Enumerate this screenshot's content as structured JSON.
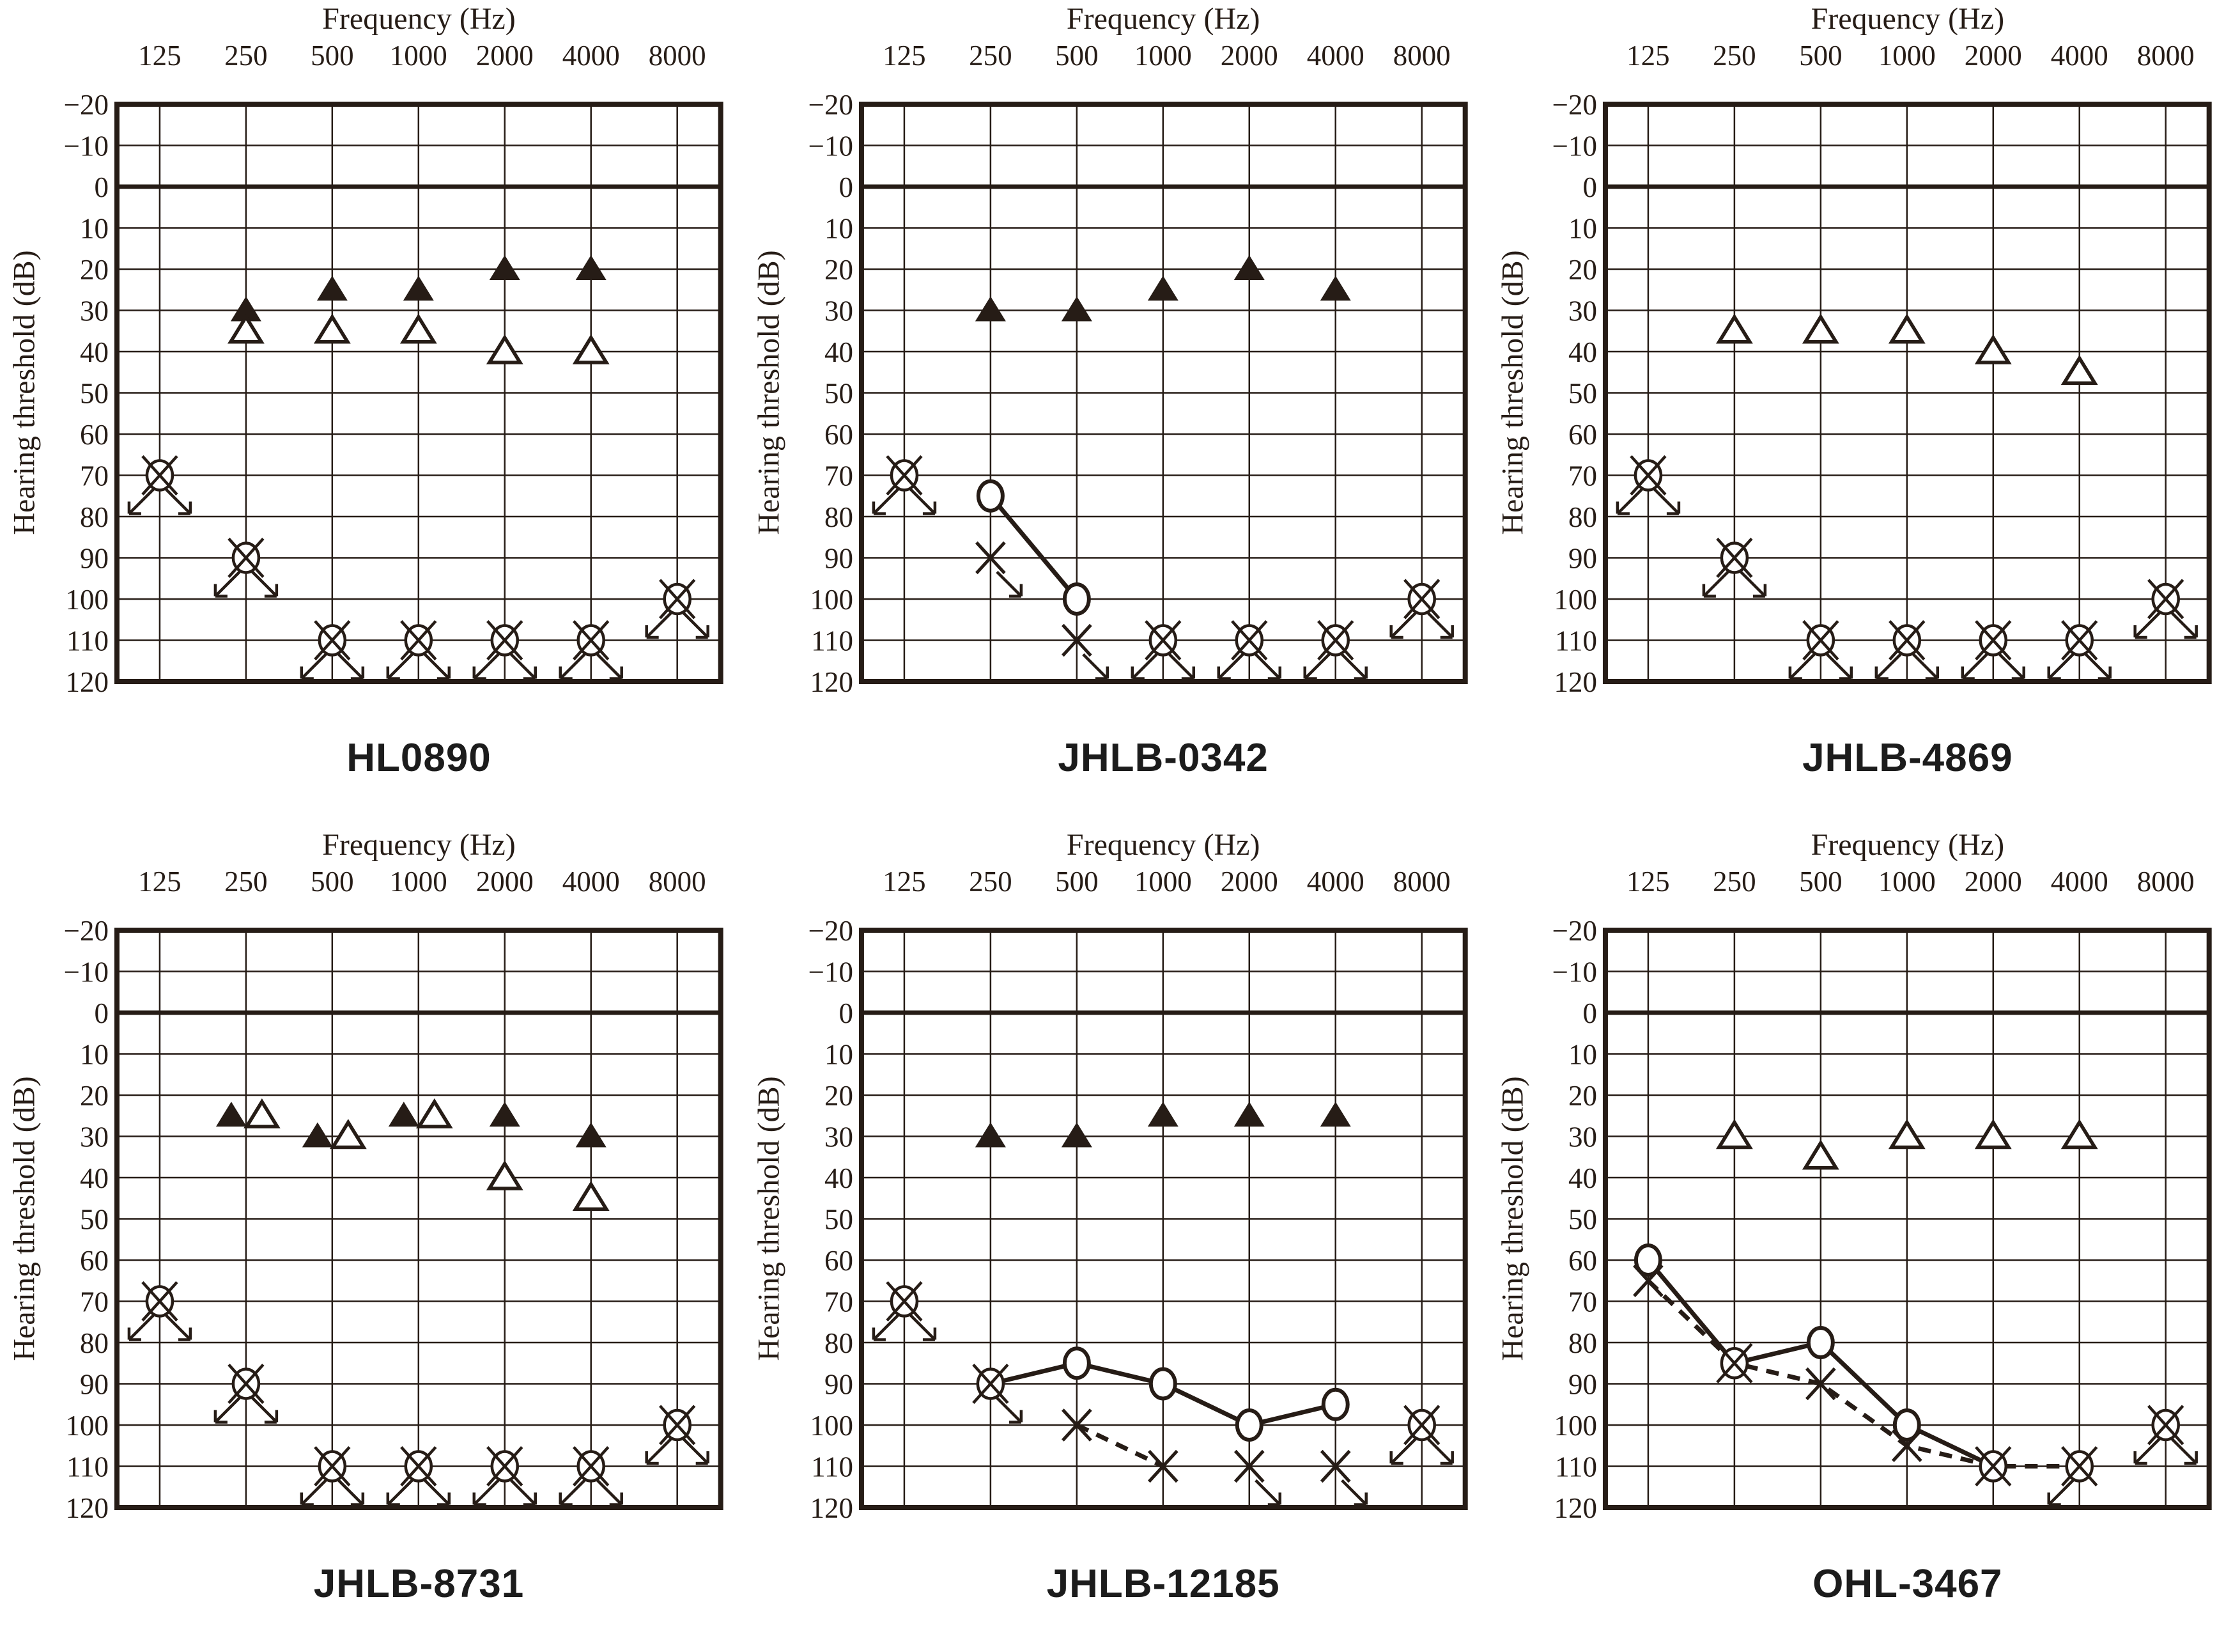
{
  "colors": {
    "ink": "#261c16",
    "background": "#ffffff"
  },
  "chart_data": {
    "type": "scatter",
    "description": "Six pure-tone audiograms arranged in a 2x3 grid",
    "layout": {
      "rows": 2,
      "cols": 3,
      "grid": true,
      "legend": "none"
    },
    "axes": {
      "x_title": "Frequency (Hz)",
      "y_title": "Hearing threshold (dB)",
      "x_ticks": [
        125,
        250,
        500,
        1000,
        2000,
        4000,
        8000
      ],
      "y_ticks": [
        -20,
        -10,
        0,
        10,
        20,
        30,
        40,
        50,
        60,
        70,
        80,
        90,
        100,
        110,
        120
      ],
      "y_min": -20,
      "y_max": 120,
      "y_step": 10,
      "zero_line_emphasized": true
    },
    "symbol_key": {
      "tri-filled": "filled upward triangle",
      "tri-open": "open upward triangle",
      "circle": "open circle (right ear, air conduction)",
      "x": "x mark (left ear, air conduction)",
      "circle-x": "overlapped circle and x (no-response / combined symbol)",
      "arrows": "dl = down-left no-response arrow, dr = down-right no-response arrow"
    },
    "charts": [
      {
        "name": "HL0890",
        "markers": [
          {
            "sym": "tri-filled",
            "f": 250,
            "db": 30
          },
          {
            "sym": "tri-filled",
            "f": 500,
            "db": 25
          },
          {
            "sym": "tri-filled",
            "f": 1000,
            "db": 25
          },
          {
            "sym": "tri-filled",
            "f": 2000,
            "db": 20
          },
          {
            "sym": "tri-filled",
            "f": 4000,
            "db": 20
          },
          {
            "sym": "tri-open",
            "f": 250,
            "db": 35
          },
          {
            "sym": "tri-open",
            "f": 500,
            "db": 35
          },
          {
            "sym": "tri-open",
            "f": 1000,
            "db": 35
          },
          {
            "sym": "tri-open",
            "f": 2000,
            "db": 40
          },
          {
            "sym": "tri-open",
            "f": 4000,
            "db": 40
          },
          {
            "sym": "circle-x",
            "f": 125,
            "db": 70,
            "arrows": [
              "dl",
              "dr"
            ]
          },
          {
            "sym": "circle-x",
            "f": 250,
            "db": 90,
            "arrows": [
              "dl",
              "dr"
            ]
          },
          {
            "sym": "circle-x",
            "f": 500,
            "db": 110,
            "arrows": [
              "dl",
              "dr"
            ]
          },
          {
            "sym": "circle-x",
            "f": 1000,
            "db": 110,
            "arrows": [
              "dl",
              "dr"
            ]
          },
          {
            "sym": "circle-x",
            "f": 2000,
            "db": 110,
            "arrows": [
              "dl",
              "dr"
            ]
          },
          {
            "sym": "circle-x",
            "f": 4000,
            "db": 110,
            "arrows": [
              "dl",
              "dr"
            ]
          },
          {
            "sym": "circle-x",
            "f": 8000,
            "db": 100,
            "arrows": [
              "dl",
              "dr"
            ]
          }
        ],
        "lines": []
      },
      {
        "name": "JHLB-0342",
        "markers": [
          {
            "sym": "tri-filled",
            "f": 250,
            "db": 30
          },
          {
            "sym": "tri-filled",
            "f": 500,
            "db": 30
          },
          {
            "sym": "tri-filled",
            "f": 1000,
            "db": 25
          },
          {
            "sym": "tri-filled",
            "f": 2000,
            "db": 20
          },
          {
            "sym": "tri-filled",
            "f": 4000,
            "db": 25
          },
          {
            "sym": "circle",
            "f": 250,
            "db": 75
          },
          {
            "sym": "circle",
            "f": 500,
            "db": 100
          },
          {
            "sym": "x",
            "f": 250,
            "db": 90,
            "arrows": [
              "dr"
            ]
          },
          {
            "sym": "x",
            "f": 500,
            "db": 110,
            "arrows": [
              "dr"
            ]
          },
          {
            "sym": "circle-x",
            "f": 125,
            "db": 70,
            "arrows": [
              "dl",
              "dr"
            ]
          },
          {
            "sym": "circle-x",
            "f": 1000,
            "db": 110,
            "arrows": [
              "dl",
              "dr"
            ]
          },
          {
            "sym": "circle-x",
            "f": 2000,
            "db": 110,
            "arrows": [
              "dl",
              "dr"
            ]
          },
          {
            "sym": "circle-x",
            "f": 4000,
            "db": 110,
            "arrows": [
              "dl",
              "dr"
            ]
          },
          {
            "sym": "circle-x",
            "f": 8000,
            "db": 100,
            "arrows": [
              "dl",
              "dr"
            ]
          }
        ],
        "lines": [
          {
            "style": "solid",
            "points": [
              [
                250,
                75
              ],
              [
                500,
                100
              ]
            ]
          }
        ]
      },
      {
        "name": "JHLB-4869",
        "markers": [
          {
            "sym": "tri-open",
            "f": 250,
            "db": 35
          },
          {
            "sym": "tri-open",
            "f": 500,
            "db": 35
          },
          {
            "sym": "tri-open",
            "f": 1000,
            "db": 35
          },
          {
            "sym": "tri-open",
            "f": 2000,
            "db": 40
          },
          {
            "sym": "tri-open",
            "f": 4000,
            "db": 45
          },
          {
            "sym": "circle-x",
            "f": 125,
            "db": 70,
            "arrows": [
              "dl",
              "dr"
            ]
          },
          {
            "sym": "circle-x",
            "f": 250,
            "db": 90,
            "arrows": [
              "dl",
              "dr"
            ]
          },
          {
            "sym": "circle-x",
            "f": 500,
            "db": 110,
            "arrows": [
              "dl",
              "dr"
            ]
          },
          {
            "sym": "circle-x",
            "f": 1000,
            "db": 110,
            "arrows": [
              "dl",
              "dr"
            ]
          },
          {
            "sym": "circle-x",
            "f": 2000,
            "db": 110,
            "arrows": [
              "dl",
              "dr"
            ]
          },
          {
            "sym": "circle-x",
            "f": 4000,
            "db": 110,
            "arrows": [
              "dl",
              "dr"
            ]
          },
          {
            "sym": "circle-x",
            "f": 8000,
            "db": 100,
            "arrows": [
              "dl",
              "dr"
            ]
          }
        ],
        "lines": []
      },
      {
        "name": "JHLB-8731",
        "markers": [
          {
            "sym": "tri-filled",
            "f": 250,
            "db": 25,
            "dx": -23
          },
          {
            "sym": "tri-filled",
            "f": 500,
            "db": 30,
            "dx": -23
          },
          {
            "sym": "tri-filled",
            "f": 1000,
            "db": 25,
            "dx": -23
          },
          {
            "sym": "tri-filled",
            "f": 2000,
            "db": 25
          },
          {
            "sym": "tri-filled",
            "f": 4000,
            "db": 30
          },
          {
            "sym": "tri-open",
            "f": 250,
            "db": 25,
            "dx": 25
          },
          {
            "sym": "tri-open",
            "f": 500,
            "db": 30,
            "dx": 25
          },
          {
            "sym": "tri-open",
            "f": 1000,
            "db": 25,
            "dx": 25
          },
          {
            "sym": "tri-open",
            "f": 2000,
            "db": 40
          },
          {
            "sym": "tri-open",
            "f": 4000,
            "db": 45
          },
          {
            "sym": "circle-x",
            "f": 125,
            "db": 70,
            "arrows": [
              "dl",
              "dr"
            ]
          },
          {
            "sym": "circle-x",
            "f": 250,
            "db": 90,
            "arrows": [
              "dl",
              "dr"
            ]
          },
          {
            "sym": "circle-x",
            "f": 500,
            "db": 110,
            "arrows": [
              "dl",
              "dr"
            ]
          },
          {
            "sym": "circle-x",
            "f": 1000,
            "db": 110,
            "arrows": [
              "dl",
              "dr"
            ]
          },
          {
            "sym": "circle-x",
            "f": 2000,
            "db": 110,
            "arrows": [
              "dl",
              "dr"
            ]
          },
          {
            "sym": "circle-x",
            "f": 4000,
            "db": 110,
            "arrows": [
              "dl",
              "dr"
            ]
          },
          {
            "sym": "circle-x",
            "f": 8000,
            "db": 100,
            "arrows": [
              "dl",
              "dr"
            ]
          }
        ],
        "lines": []
      },
      {
        "name": "JHLB-12185",
        "markers": [
          {
            "sym": "tri-filled",
            "f": 250,
            "db": 30
          },
          {
            "sym": "tri-filled",
            "f": 500,
            "db": 30
          },
          {
            "sym": "tri-filled",
            "f": 1000,
            "db": 25
          },
          {
            "sym": "tri-filled",
            "f": 2000,
            "db": 25
          },
          {
            "sym": "tri-filled",
            "f": 4000,
            "db": 25
          },
          {
            "sym": "circle-x",
            "f": 250,
            "db": 90,
            "arrows": [
              "dr"
            ]
          },
          {
            "sym": "circle",
            "f": 500,
            "db": 85
          },
          {
            "sym": "circle",
            "f": 1000,
            "db": 90
          },
          {
            "sym": "circle",
            "f": 2000,
            "db": 100
          },
          {
            "sym": "circle",
            "f": 4000,
            "db": 95
          },
          {
            "sym": "x",
            "f": 500,
            "db": 100
          },
          {
            "sym": "x",
            "f": 1000,
            "db": 110
          },
          {
            "sym": "x",
            "f": 2000,
            "db": 110,
            "arrows": [
              "dr"
            ]
          },
          {
            "sym": "x",
            "f": 4000,
            "db": 110,
            "arrows": [
              "dr"
            ]
          },
          {
            "sym": "circle-x",
            "f": 125,
            "db": 70,
            "arrows": [
              "dl",
              "dr"
            ]
          },
          {
            "sym": "circle-x",
            "f": 8000,
            "db": 100,
            "arrows": [
              "dl",
              "dr"
            ]
          }
        ],
        "lines": [
          {
            "style": "solid",
            "points": [
              [
                250,
                90
              ],
              [
                500,
                85
              ],
              [
                1000,
                90
              ],
              [
                2000,
                100
              ],
              [
                4000,
                95
              ]
            ]
          },
          {
            "style": "dashed",
            "points": [
              [
                500,
                100
              ],
              [
                1000,
                110
              ]
            ]
          }
        ]
      },
      {
        "name": "OHL-3467",
        "markers": [
          {
            "sym": "tri-open",
            "f": 250,
            "db": 30
          },
          {
            "sym": "tri-open",
            "f": 500,
            "db": 35
          },
          {
            "sym": "tri-open",
            "f": 1000,
            "db": 30
          },
          {
            "sym": "tri-open",
            "f": 2000,
            "db": 30
          },
          {
            "sym": "tri-open",
            "f": 4000,
            "db": 30
          },
          {
            "sym": "circle",
            "f": 125,
            "db": 60
          },
          {
            "sym": "circle",
            "f": 500,
            "db": 80
          },
          {
            "sym": "circle",
            "f": 1000,
            "db": 100
          },
          {
            "sym": "x",
            "f": 125,
            "db": 65
          },
          {
            "sym": "x",
            "f": 500,
            "db": 90
          },
          {
            "sym": "x",
            "f": 1000,
            "db": 105
          },
          {
            "sym": "circle-x",
            "f": 250,
            "db": 85
          },
          {
            "sym": "circle-x",
            "f": 2000,
            "db": 110
          },
          {
            "sym": "circle-x",
            "f": 4000,
            "db": 110,
            "arrows": [
              "dl"
            ]
          },
          {
            "sym": "circle-x",
            "f": 8000,
            "db": 100,
            "arrows": [
              "dl",
              "dr"
            ]
          }
        ],
        "lines": [
          {
            "style": "solid",
            "points": [
              [
                125,
                60
              ],
              [
                250,
                85
              ],
              [
                500,
                80
              ],
              [
                1000,
                100
              ],
              [
                2000,
                110
              ]
            ]
          },
          {
            "style": "dashed",
            "points": [
              [
                125,
                65
              ],
              [
                250,
                85
              ],
              [
                500,
                90
              ],
              [
                1000,
                105
              ],
              [
                2000,
                110
              ],
              [
                4000,
                110
              ]
            ]
          }
        ]
      }
    ]
  }
}
